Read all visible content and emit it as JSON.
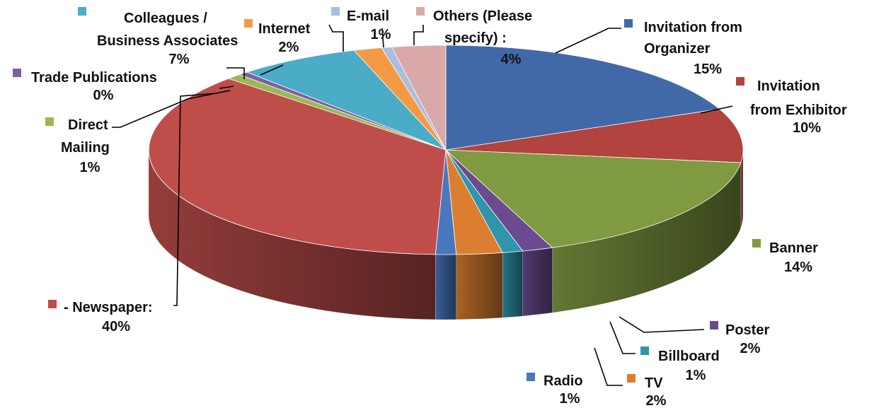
{
  "chart_data": {
    "type": "pie",
    "style": "3d",
    "legend": "none",
    "slices": [
      {
        "name": "Invitation from Organizer",
        "value": 15,
        "label": "15%",
        "color": "#4169a8"
      },
      {
        "name": "Invitation from Exhibitor",
        "value": 10,
        "label": "10%",
        "color": "#b2433f"
      },
      {
        "name": "Banner",
        "value": 14,
        "label": "14%",
        "color": "#7f9a41"
      },
      {
        "name": "Poster",
        "value": 2,
        "label": "2%",
        "color": "#6b4b90"
      },
      {
        "name": "Billboard",
        "value": 1,
        "label": "1%",
        "color": "#2f95ab"
      },
      {
        "name": "TV",
        "value": 2,
        "label": "2%",
        "color": "#db7e2f"
      },
      {
        "name": "Radio",
        "value": 1,
        "label": "1%",
        "color": "#4a78bf"
      },
      {
        "name": "- Newspaper:",
        "value": 40,
        "label": "40%",
        "color": "#bf4e4b"
      },
      {
        "name": "Direct Mailing",
        "value": 1,
        "label": "1%",
        "color": "#9ab856"
      },
      {
        "name": "Trade Publications",
        "value": 0,
        "label": "0%",
        "color": "#7e5fa0"
      },
      {
        "name": "Colleagues / Business Associates",
        "value": 7,
        "label": "7%",
        "color": "#4aacc6"
      },
      {
        "name": "Internet",
        "value": 2,
        "label": "2%",
        "color": "#f49a45"
      },
      {
        "name": "E-mail",
        "value": 1,
        "label": "1%",
        "color": "#a9bddf"
      },
      {
        "name": "Others (Please specify) :",
        "value": 4,
        "label": "4%",
        "color": "#d8a9a8"
      }
    ],
    "label_text": {
      "organizer": [
        "Invitation from",
        "Organizer"
      ],
      "exhibitor": [
        "Invitation",
        "from Exhibitor"
      ],
      "banner": [
        "Banner"
      ],
      "poster": [
        "Poster"
      ],
      "billboard": [
        "Billboard"
      ],
      "tv": [
        "TV"
      ],
      "radio": [
        "Radio"
      ],
      "newspaper": [
        "- Newspaper:"
      ],
      "direct": [
        "Direct",
        "Mailing"
      ],
      "trade": [
        "Trade Publications"
      ],
      "colleagues": [
        "Colleagues /",
        "Business Associates"
      ],
      "internet": [
        "Internet"
      ],
      "email": [
        "E-mail"
      ],
      "others": [
        "Others (Please",
        "specify) :"
      ]
    }
  }
}
